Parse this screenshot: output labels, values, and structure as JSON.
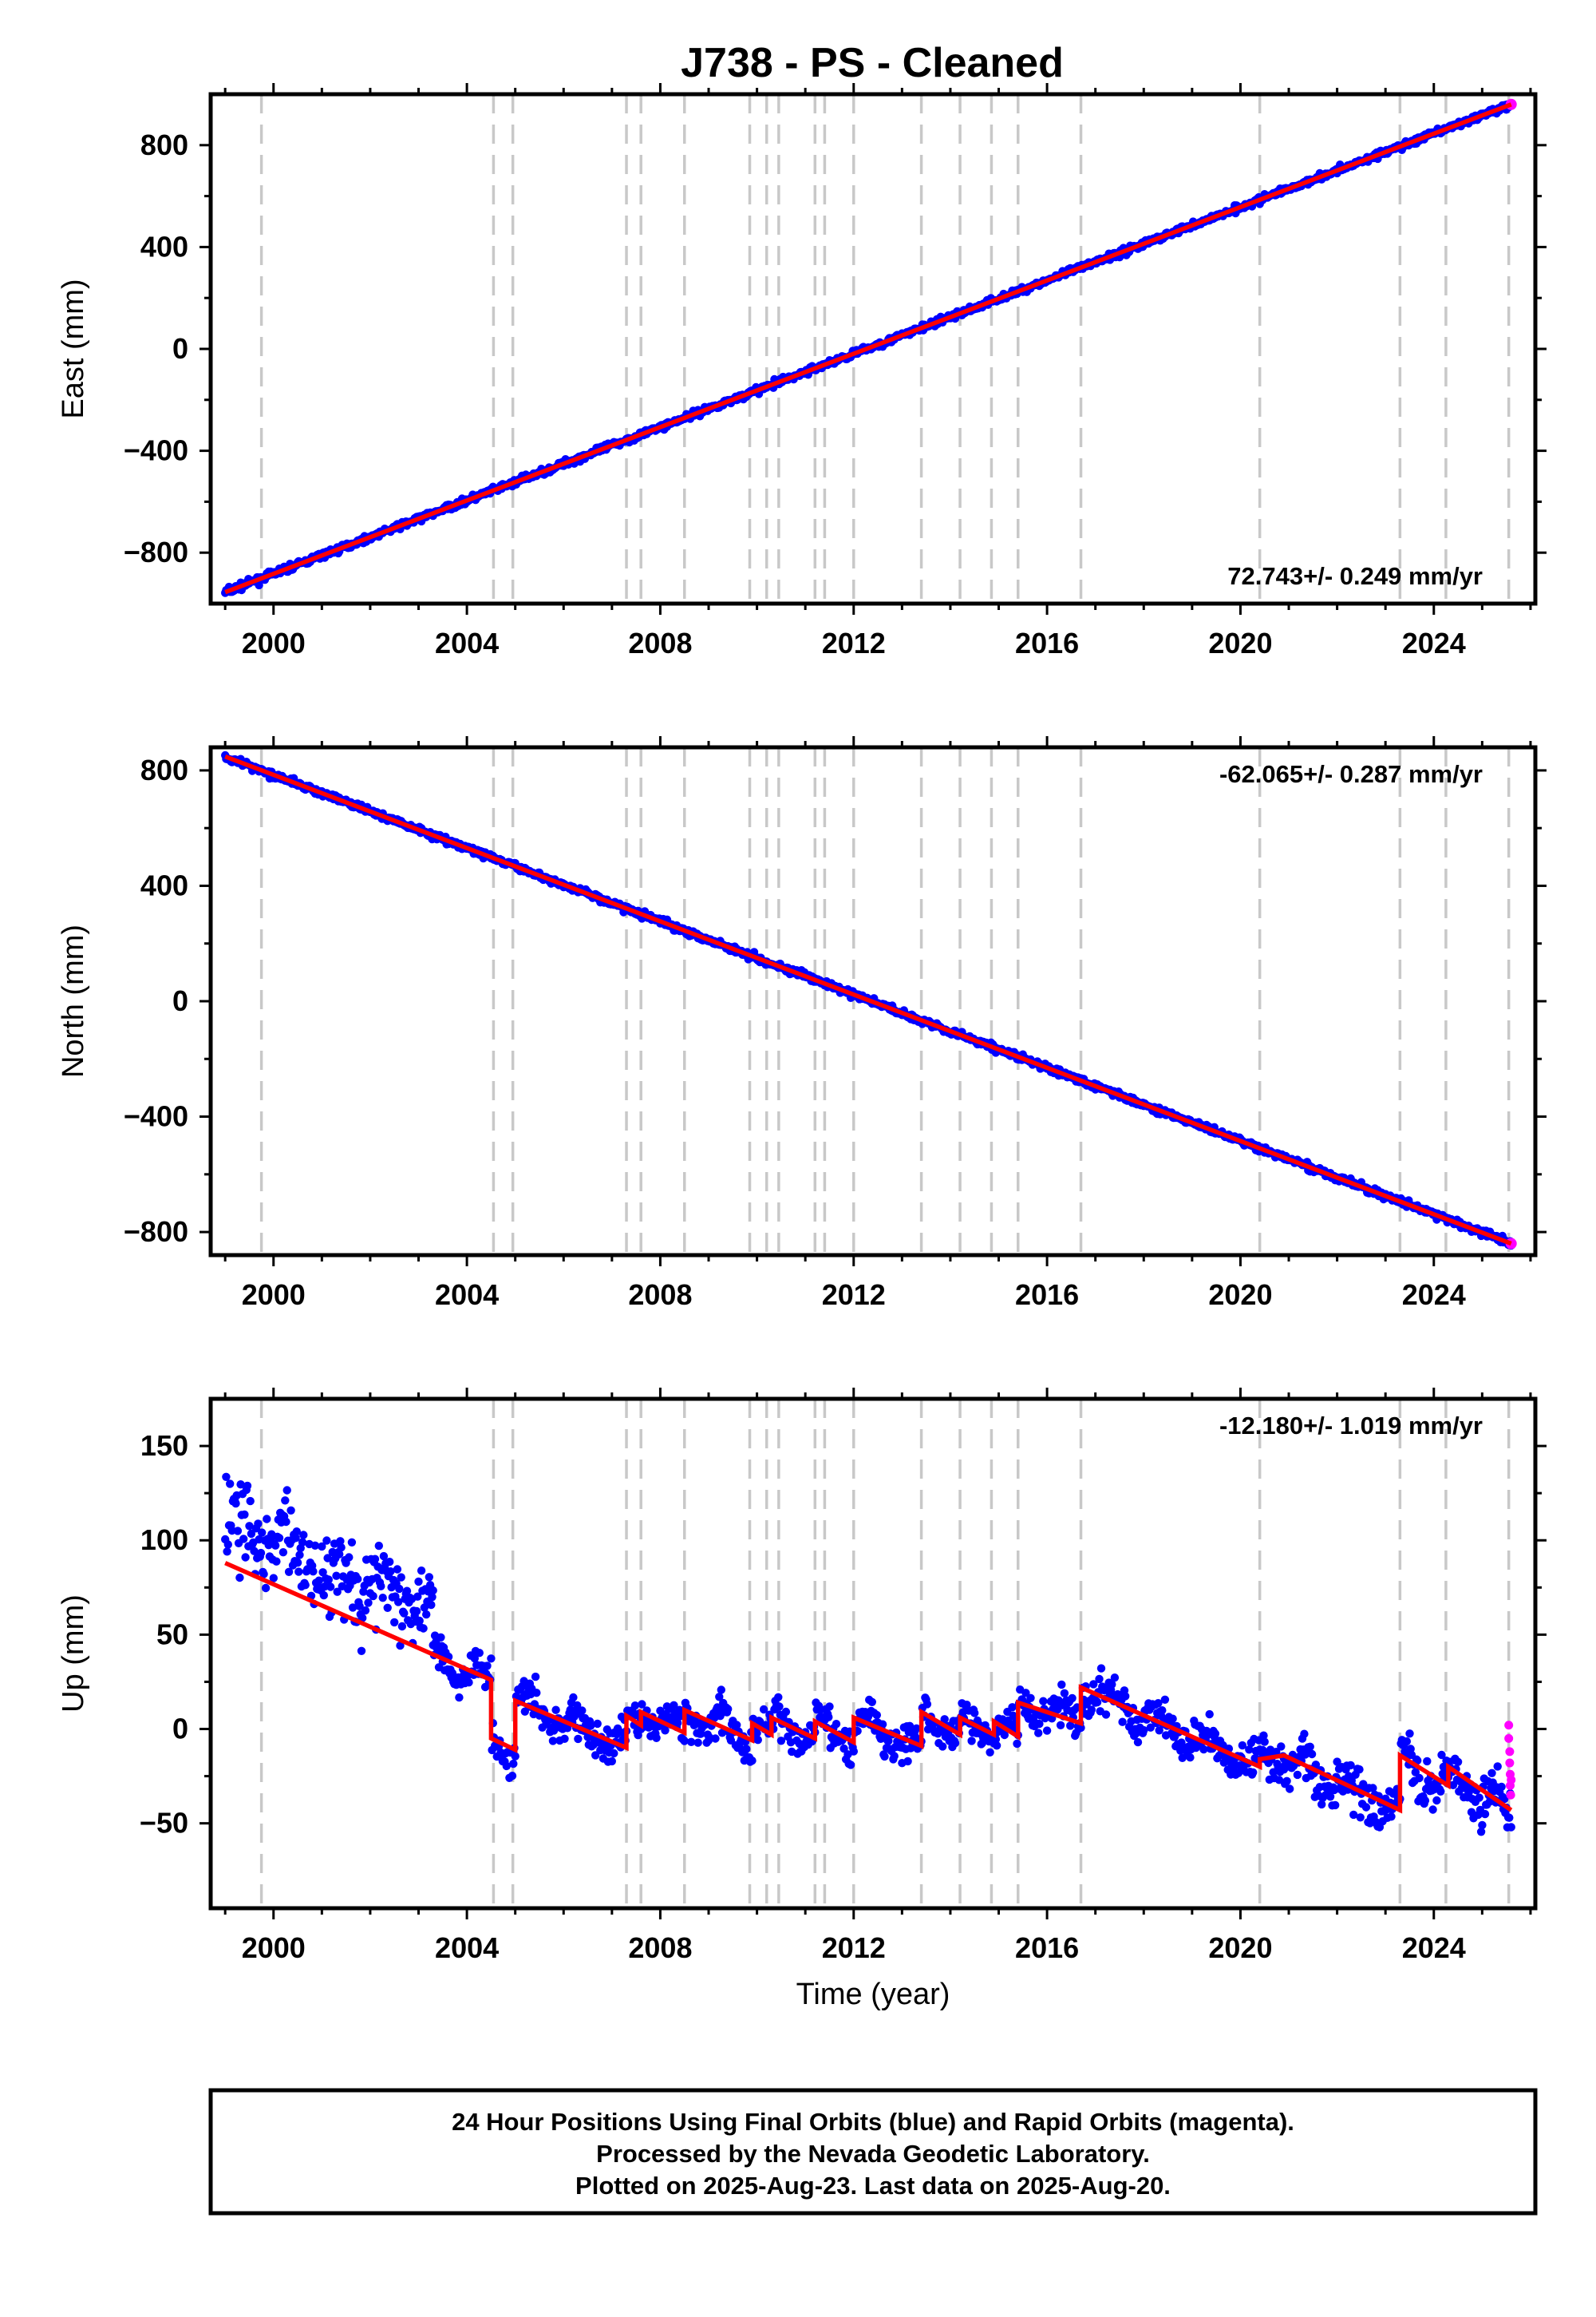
{
  "title": "J738  - PS - Cleaned",
  "colors": {
    "final_orbits": "#0000ff",
    "rapid_orbits": "#ff00ff",
    "model": "#ff0000",
    "event_lines": "#c8c8c8",
    "frame": "#000000"
  },
  "chart_data": [
    {
      "type": "scatter",
      "panel": "east",
      "ylabel": "East (mm)",
      "xlabel": "",
      "xlim": [
        1998.7,
        2026.1
      ],
      "ylim": [
        -1000,
        1000
      ],
      "xticks": [
        2000,
        2004,
        2008,
        2012,
        2016,
        2020,
        2024
      ],
      "yticks": [
        -800,
        -400,
        0,
        400,
        800
      ],
      "rate_label": "72.743+/- 0.249 mm/yr",
      "start": {
        "x": 1999.0,
        "y": -955
      },
      "end": {
        "x": 2025.6,
        "y": 960
      },
      "model_steps": [],
      "scatter_sd": 9
    },
    {
      "type": "scatter",
      "panel": "north",
      "ylabel": "North (mm)",
      "xlabel": "",
      "xlim": [
        1998.7,
        2026.1
      ],
      "ylim": [
        -880,
        880
      ],
      "xticks": [
        2000,
        2004,
        2008,
        2012,
        2016,
        2020,
        2024
      ],
      "yticks": [
        -800,
        -400,
        0,
        400,
        800
      ],
      "rate_label": "-62.065+/- 0.287 mm/yr",
      "start": {
        "x": 1999.0,
        "y": 848
      },
      "end": {
        "x": 2025.6,
        "y": -840
      },
      "model_steps": [],
      "scatter_sd": 8
    },
    {
      "type": "scatter",
      "panel": "up",
      "ylabel": "Up (mm)",
      "xlabel": "Time (year)",
      "xlim": [
        1998.7,
        2026.1
      ],
      "ylim": [
        -95,
        175
      ],
      "xticks": [
        2000,
        2004,
        2008,
        2012,
        2016,
        2020,
        2024
      ],
      "yticks": [
        -50,
        0,
        50,
        100,
        150
      ],
      "rate_label": "-12.180+/- 1.019 mm/yr",
      "model_steps": [
        {
          "x": 1999.0,
          "y": 88
        },
        {
          "x": 2004.5,
          "y": 26,
          "jump_to": -5
        },
        {
          "x": 2005.0,
          "y": -11,
          "jump_to": 15
        },
        {
          "x": 2007.3,
          "y": -10,
          "jump_to": 7
        },
        {
          "x": 2007.6,
          "y": 2,
          "jump_to": 9
        },
        {
          "x": 2008.5,
          "y": -2,
          "jump_to": 10
        },
        {
          "x": 2009.9,
          "y": -6,
          "jump_to": 3
        },
        {
          "x": 2010.3,
          "y": -3,
          "jump_to": 6
        },
        {
          "x": 2011.2,
          "y": -5,
          "jump_to": 4
        },
        {
          "x": 2012.0,
          "y": -7,
          "jump_to": 6
        },
        {
          "x": 2013.4,
          "y": -9,
          "jump_to": 9
        },
        {
          "x": 2014.2,
          "y": -3,
          "jump_to": 6
        },
        {
          "x": 2014.9,
          "y": -3,
          "jump_to": 4
        },
        {
          "x": 2015.4,
          "y": -4,
          "jump_to": 14
        },
        {
          "x": 2016.7,
          "y": 3,
          "jump_to": 22
        },
        {
          "x": 2020.4,
          "y": -20,
          "jump_to": -16
        },
        {
          "x": 2020.9,
          "y": -14
        },
        {
          "x": 2021.9,
          "y": -26
        },
        {
          "x": 2023.3,
          "y": -43,
          "jump_to": -14
        },
        {
          "x": 2024.3,
          "y": -30,
          "jump_to": -20
        },
        {
          "x": 2025.6,
          "y": -43
        }
      ],
      "scatter_segments": [
        {
          "x0": 1999.0,
          "x1": 2003.3,
          "offset": 22,
          "sd": 16
        },
        {
          "x0": 2003.3,
          "x1": 2020.9,
          "offset": 0,
          "sd": 7
        },
        {
          "x0": 2020.9,
          "x1": 2025.6,
          "offset": -2,
          "sd": 9
        }
      ],
      "rapid_points": [
        {
          "x": 2025.55,
          "y": 2
        },
        {
          "x": 2025.55,
          "y": -5
        },
        {
          "x": 2025.57,
          "y": -12
        },
        {
          "x": 2025.57,
          "y": -18
        },
        {
          "x": 2025.58,
          "y": -24
        },
        {
          "x": 2025.58,
          "y": -30
        },
        {
          "x": 2025.59,
          "y": -35
        },
        {
          "x": 2025.6,
          "y": -27
        }
      ]
    }
  ],
  "event_lines_x": [
    1999.75,
    2004.55,
    2004.95,
    2007.3,
    2007.6,
    2008.5,
    2009.85,
    2010.2,
    2010.45,
    2011.2,
    2011.4,
    2012.0,
    2013.4,
    2014.2,
    2014.85,
    2015.4,
    2016.7,
    2020.4,
    2023.3,
    2024.25,
    2025.55
  ],
  "footer": {
    "line1": "24 Hour Positions Using Final Orbits (blue) and Rapid Orbits (magenta).",
    "line2": "Processed by the Nevada Geodetic Laboratory.",
    "line3": "Plotted on 2025-Aug-23. Last data on 2025-Aug-20."
  }
}
